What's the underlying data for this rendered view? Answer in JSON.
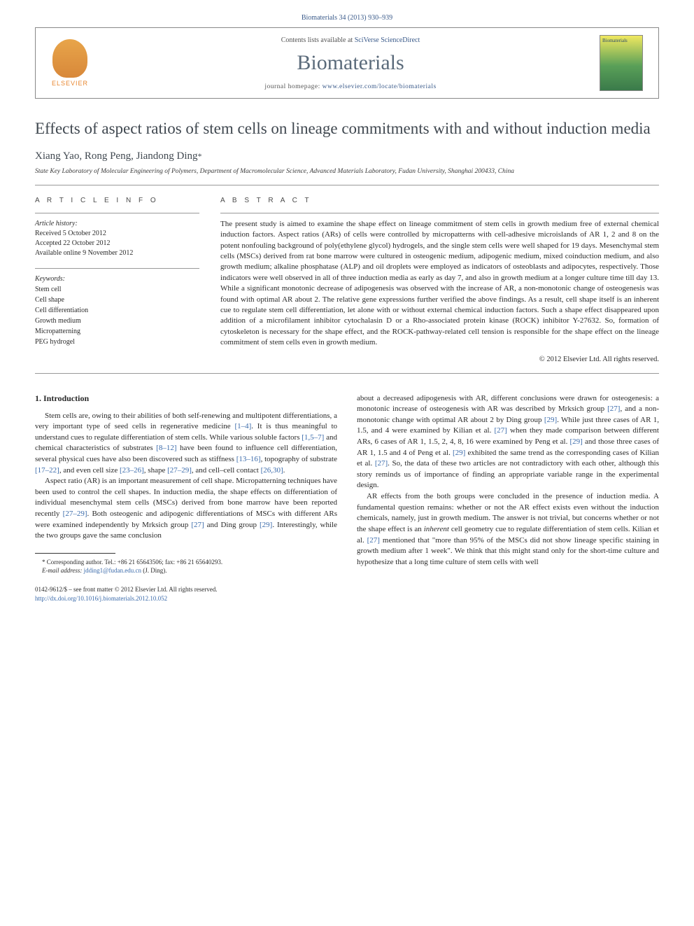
{
  "top_ref": "Biomaterials 34 (2013) 930–939",
  "header": {
    "publisher": "ELSEVIER",
    "contents_prefix": "Contents lists available at ",
    "contents_link": "SciVerse ScienceDirect",
    "journal": "Biomaterials",
    "homepage_prefix": "journal homepage: ",
    "homepage_url": "www.elsevier.com/locate/biomaterials",
    "cover_label": "Biomaterials"
  },
  "title": "Effects of aspect ratios of stem cells on lineage commitments with and without induction media",
  "authors": "Xiang Yao, Rong Peng, Jiandong Ding",
  "author_mark": "*",
  "affiliation": "State Key Laboratory of Molecular Engineering of Polymers, Department of Macromolecular Science, Advanced Materials Laboratory, Fudan University, Shanghai 200433, China",
  "article_info": {
    "head": "A R T I C L E   I N F O",
    "history_label": "Article history:",
    "received": "Received 5 October 2012",
    "accepted": "Accepted 22 October 2012",
    "online": "Available online 9 November 2012",
    "keywords_label": "Keywords:",
    "keywords": [
      "Stem cell",
      "Cell shape",
      "Cell differentiation",
      "Growth medium",
      "Micropatterning",
      "PEG hydrogel"
    ]
  },
  "abstract": {
    "head": "A B S T R A C T",
    "text": "The present study is aimed to examine the shape effect on lineage commitment of stem cells in growth medium free of external chemical induction factors. Aspect ratios (ARs) of cells were controlled by micropatterns with cell-adhesive microislands of AR 1, 2 and 8 on the potent nonfouling background of poly(ethylene glycol) hydrogels, and the single stem cells were well shaped for 19 days. Mesenchymal stem cells (MSCs) derived from rat bone marrow were cultured in osteogenic medium, adipogenic medium, mixed coinduction medium, and also growth medium; alkaline phosphatase (ALP) and oil droplets were employed as indicators of osteoblasts and adipocytes, respectively. Those indicators were well observed in all of three induction media as early as day 7, and also in growth medium at a longer culture time till day 13. While a significant monotonic decrease of adipogenesis was observed with the increase of AR, a non-monotonic change of osteogenesis was found with optimal AR about 2. The relative gene expressions further verified the above findings. As a result, cell shape itself is an inherent cue to regulate stem cell differentiation, let alone with or without external chemical induction factors. Such a shape effect disappeared upon addition of a microfilament inhibitor cytochalasin D or a Rho-associated protein kinase (ROCK) inhibitor Y-27632. So, formation of cytoskeleton is necessary for the shape effect, and the ROCK-pathway-related cell tension is responsible for the shape effect on the lineage commitment of stem cells even in growth medium.",
    "copyright": "© 2012 Elsevier Ltd. All rights reserved."
  },
  "intro": {
    "heading": "1. Introduction",
    "p1a": "Stem cells are, owing to their abilities of both self-renewing and multipotent differentiations, a very important type of seed cells in regenerative medicine ",
    "c1": "[1–4]",
    "p1b": ". It is thus meaningful to understand cues to regulate differentiation of stem cells. While various soluble factors ",
    "c2": "[1,5–7]",
    "p1c": " and chemical characteristics of substrates ",
    "c3": "[8–12]",
    "p1d": " have been found to influence cell differentiation, several physical cues have also been discovered such as stiffness ",
    "c4": "[13–16]",
    "p1e": ", topography of substrate ",
    "c5": "[17–22]",
    "p1f": ", and even cell size ",
    "c6": "[23–26]",
    "p1g": ", shape ",
    "c7": "[27–29]",
    "p1h": ", and cell–cell contact ",
    "c8": "[26,30]",
    "p1i": ".",
    "p2a": "Aspect ratio (AR) is an important measurement of cell shape. Micropatterning techniques have been used to control the cell shapes. In induction media, the shape effects on differentiation of individual mesenchymal stem cells (MSCs) derived from bone marrow have been reported recently ",
    "c9": "[27–29]",
    "p2b": ". Both osteogenic and adipogenic differentiations of MSCs with different ARs were examined independently by Mrksich group ",
    "c10": "[27]",
    "p2c": " and Ding group ",
    "c11": "[29]",
    "p2d": ". Interestingly, while the two groups gave the same conclusion",
    "p3a": "about a decreased adipogenesis with AR, different conclusions were drawn for osteogenesis: a monotonic increase of osteogenesis with AR was described by Mrksich group ",
    "c12": "[27]",
    "p3b": ", and a non-monotonic change with optimal AR about 2 by Ding group ",
    "c13": "[29]",
    "p3c": ". While just three cases of AR 1, 1.5, and 4 were examined by Kilian et al. ",
    "c14": "[27]",
    "p3d": " when they made comparison between different ARs, 6 cases of AR 1, 1.5, 2, 4, 8, 16 were examined by Peng et al. ",
    "c15": "[29]",
    "p3e": " and those three cases of AR 1, 1.5 and 4 of Peng et al. ",
    "c16": "[29]",
    "p3f": " exhibited the same trend as the corresponding cases of Kilian et al. ",
    "c17": "[27]",
    "p3g": ". So, the data of these two articles are not contradictory with each other, although this story reminds us of importance of finding an appropriate variable range in the experimental design.",
    "p4a": "AR effects from the both groups were concluded in the presence of induction media. A fundamental question remains: whether or not the AR effect exists even without the induction chemicals, namely, just in growth medium. The answer is not trivial, but concerns whether or not the shape effect is an ",
    "p4em": "inherent",
    "p4b": " cell geometry cue to regulate differentiation of stem cells. Kilian et al. ",
    "c18": "[27]",
    "p4c": " mentioned that \"more than 95% of the MSCs did not show lineage specific staining in growth medium after 1 week\". We think that this might stand only for the short-time culture and hypothesize that a long time culture of stem cells with well"
  },
  "footnote": {
    "corr": "* Corresponding author. Tel.: +86 21 65643506; fax: +86 21 65640293.",
    "email_label": "E-mail address: ",
    "email": "jdding1@fudan.edu.cn",
    "email_suffix": " (J. Ding)."
  },
  "bottom": {
    "issn": "0142-9612/$ – see front matter © 2012 Elsevier Ltd. All rights reserved.",
    "doi": "http://dx.doi.org/10.1016/j.biomaterials.2012.10.052"
  },
  "colors": {
    "link": "#3a6aaa",
    "heading": "#404850",
    "journal_gray": "#5a6a7a",
    "elsevier_orange": "#e8872f"
  }
}
